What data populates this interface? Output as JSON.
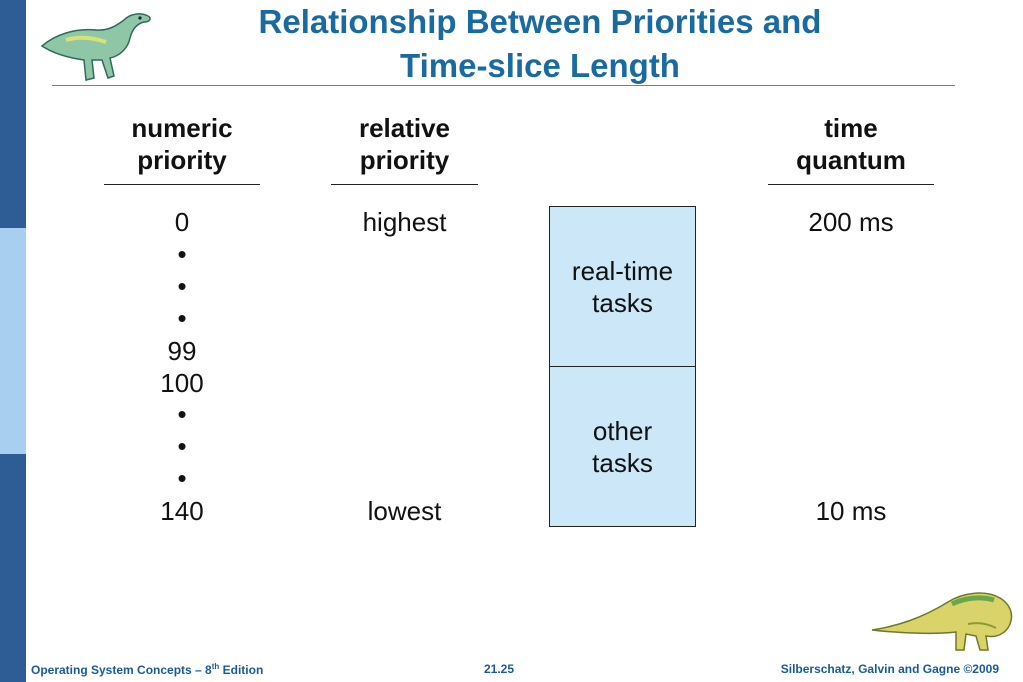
{
  "title": {
    "line1": "Relationship Between Priorities and",
    "line2": "Time-slice Length"
  },
  "columns": {
    "numeric": {
      "line1": "numeric",
      "line2": "priority"
    },
    "relative": {
      "line1": "relative",
      "line2": "priority"
    },
    "quantum": {
      "line1": "time",
      "line2": "quantum"
    }
  },
  "numeric_values": {
    "top": "0",
    "mid1": "99",
    "mid2": "100",
    "bottom": "140",
    "bullet": "•"
  },
  "relative_values": {
    "top": "highest",
    "bottom": "lowest"
  },
  "quantum_values": {
    "top": "200 ms",
    "bottom": "10 ms"
  },
  "boxes": {
    "realtime": {
      "line1": "real-time",
      "line2": "tasks"
    },
    "other": {
      "line1": "other",
      "line2": "tasks"
    }
  },
  "footer": {
    "left_pre": "Operating System Concepts – 8",
    "left_sup": "th",
    "left_post": " Edition",
    "center": "21.25",
    "right": "Silberschatz, Galvin and Gagne ©2009"
  },
  "colors": {
    "title": "#1a6aa2",
    "sidebar": "#2d5d94",
    "sidebar_light": "#a8cff0",
    "box_fill": "#cce8f8"
  }
}
